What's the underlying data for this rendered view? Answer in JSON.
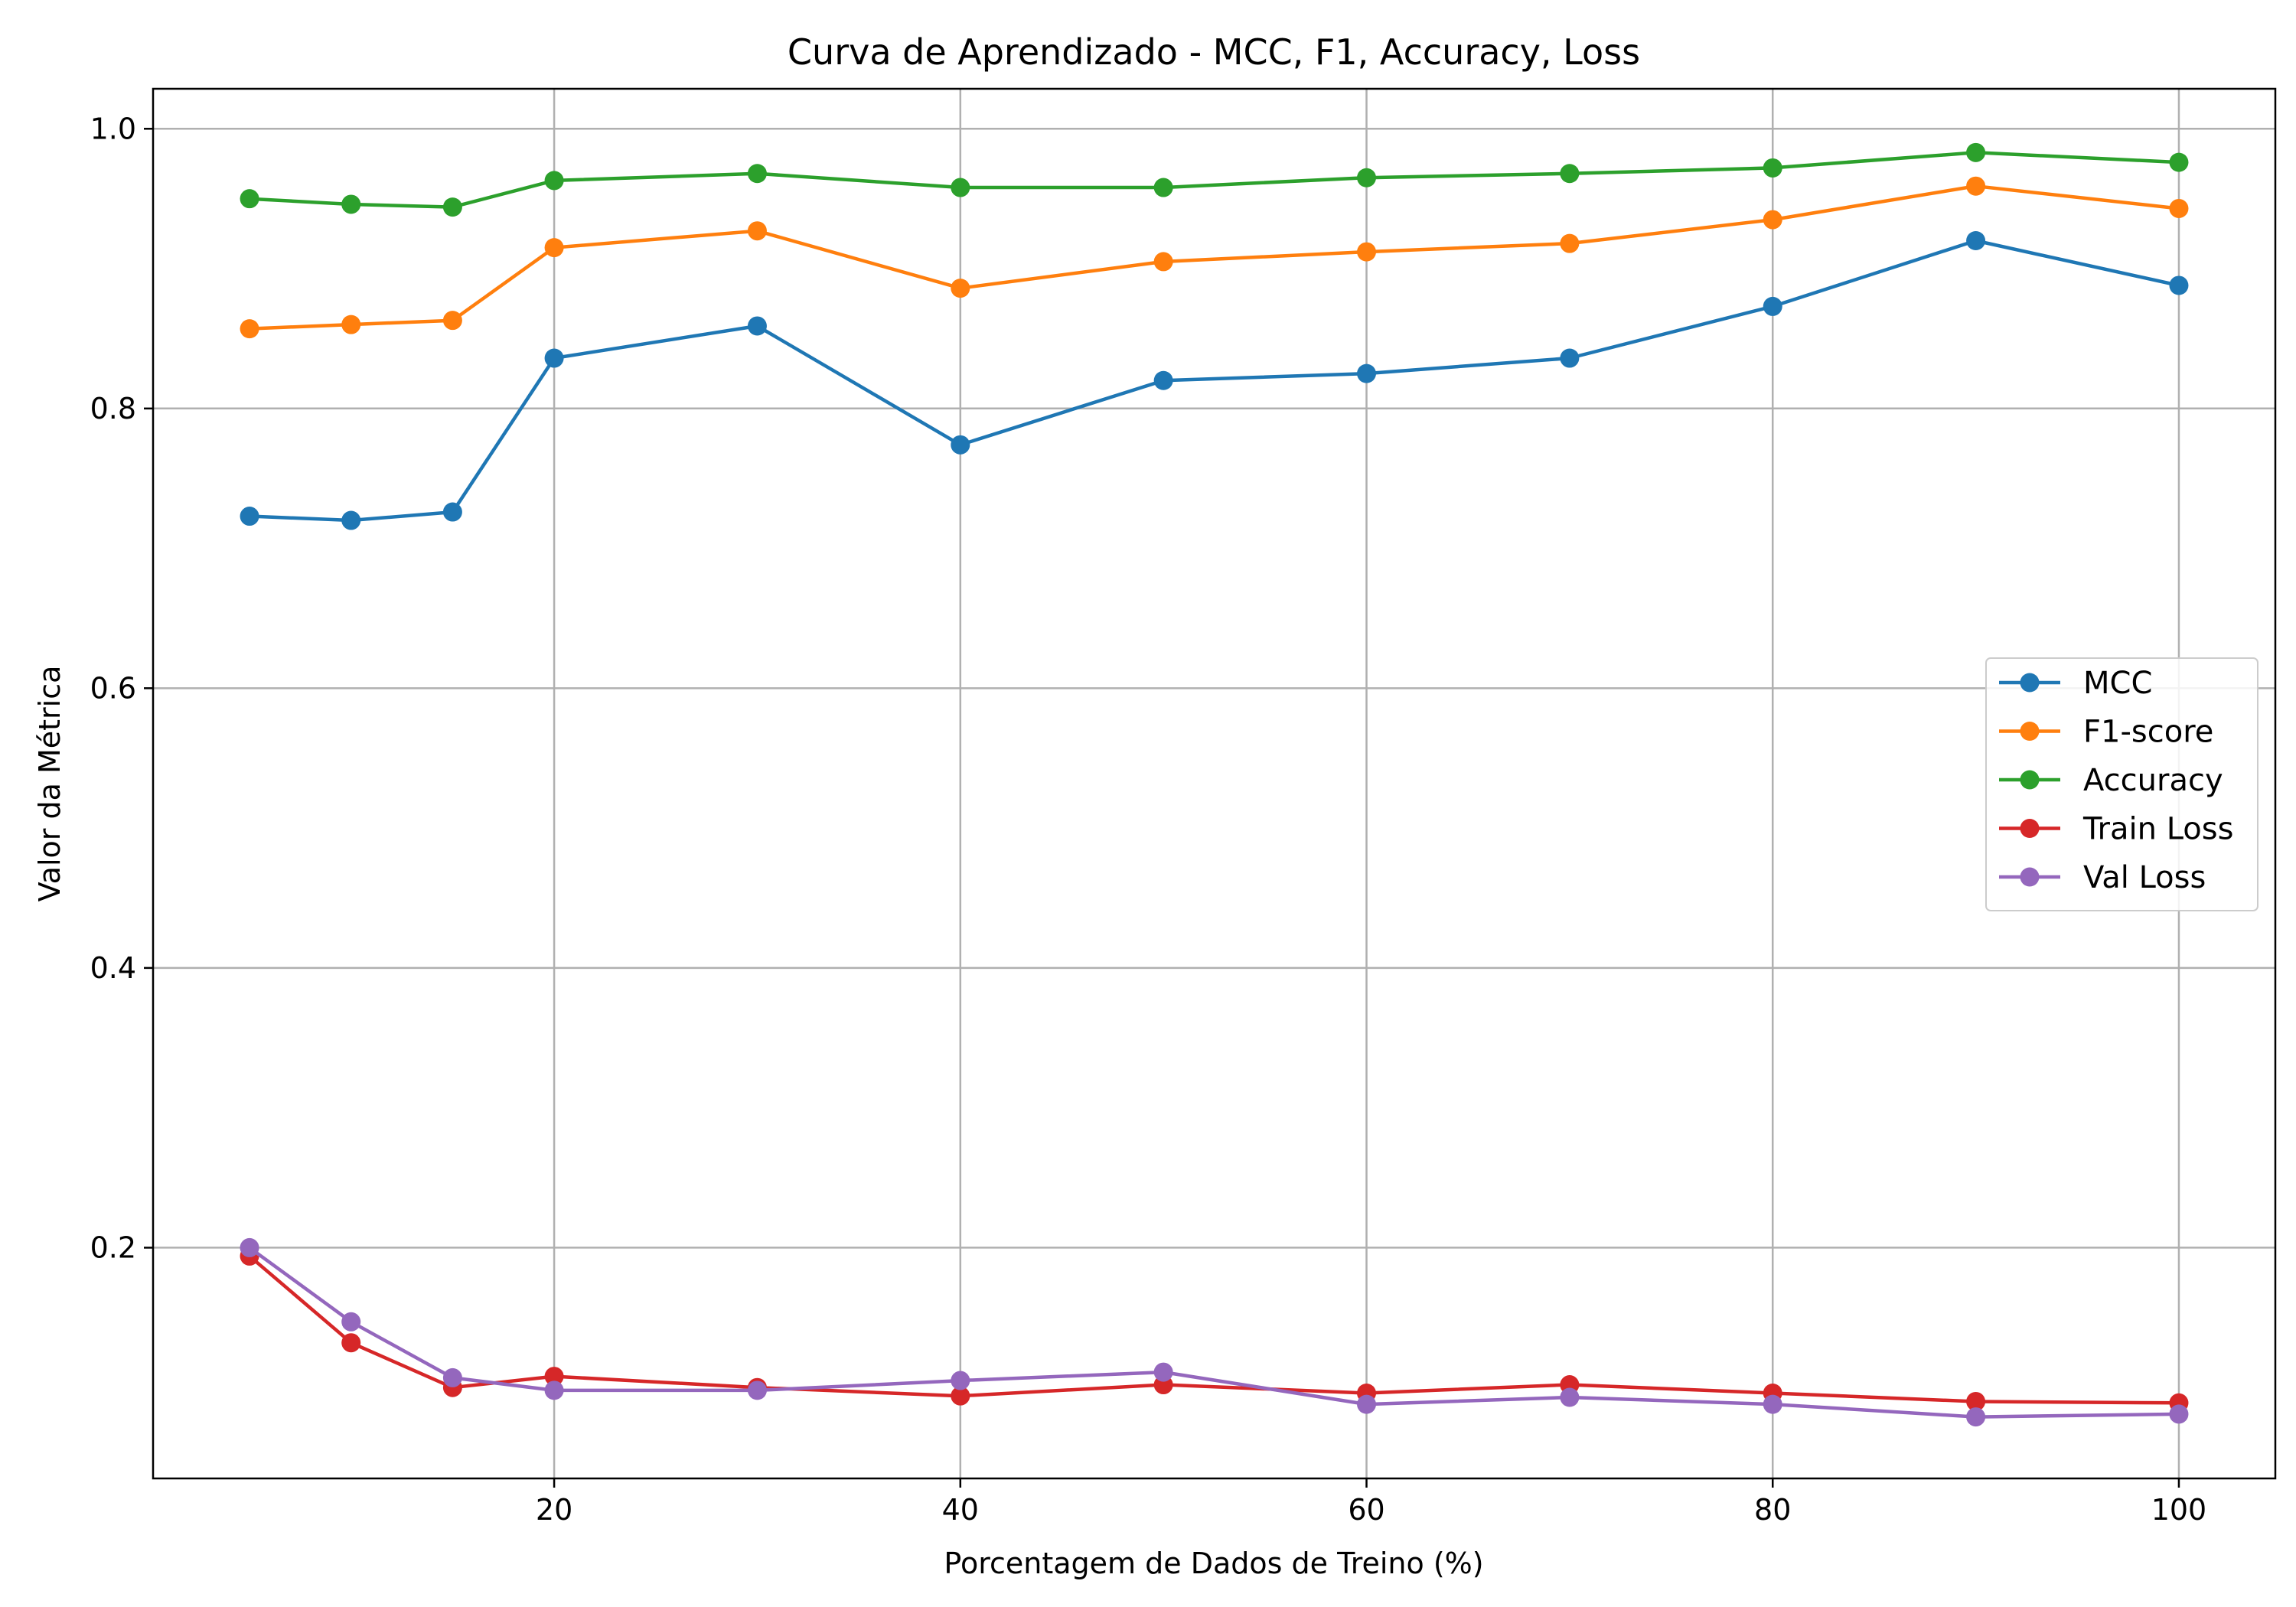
{
  "chart_data": {
    "type": "line",
    "title": "Curva de Aprendizado - MCC, F1, Accuracy, Loss",
    "xlabel": "Porcentagem de Dados de Treino (%)",
    "ylabel": "Valor da Métrica",
    "xlim": [
      0.25,
      104.75
    ],
    "ylim": [
      0.035,
      1.0286
    ],
    "x_ticks": [
      20,
      40,
      60,
      80,
      100
    ],
    "y_ticks": [
      0.2,
      0.4,
      0.6,
      0.8,
      1.0
    ],
    "x_tick_labels": [
      "20",
      "40",
      "60",
      "80",
      "100"
    ],
    "y_tick_labels": [
      "0.2",
      "0.4",
      "0.6",
      "0.8",
      "1.0"
    ],
    "grid": true,
    "legend_position": "center-right",
    "x": [
      5,
      10,
      15,
      20,
      30,
      40,
      50,
      60,
      70,
      80,
      90,
      100
    ],
    "series": [
      {
        "name": "MCC",
        "color": "#1f77b4",
        "values": [
          0.723,
          0.72,
          0.726,
          0.836,
          0.859,
          0.774,
          0.82,
          0.825,
          0.836,
          0.873,
          0.92,
          0.888
        ]
      },
      {
        "name": "F1-score",
        "color": "#ff7f0e",
        "values": [
          0.857,
          0.86,
          0.863,
          0.915,
          0.927,
          0.886,
          0.905,
          0.912,
          0.918,
          0.935,
          0.959,
          0.943
        ]
      },
      {
        "name": "Accuracy",
        "color": "#2ca02c",
        "values": [
          0.95,
          0.946,
          0.944,
          0.963,
          0.968,
          0.958,
          0.958,
          0.965,
          0.968,
          0.972,
          0.983,
          0.976
        ]
      },
      {
        "name": "Train Loss",
        "color": "#d62728",
        "values": [
          0.194,
          0.132,
          0.1,
          0.108,
          0.1,
          0.094,
          0.102,
          0.096,
          0.102,
          0.096,
          0.09,
          0.089
        ]
      },
      {
        "name": "Val Loss",
        "color": "#9467bd",
        "values": [
          0.2,
          0.147,
          0.107,
          0.098,
          0.098,
          0.105,
          0.111,
          0.088,
          0.093,
          0.088,
          0.079,
          0.081
        ]
      }
    ]
  }
}
